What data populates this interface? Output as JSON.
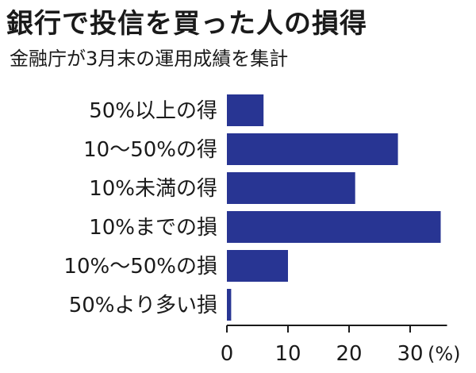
{
  "chart_data": {
    "type": "bar",
    "orientation": "horizontal",
    "title": "銀行で投信を買った人の損得",
    "subtitle": "金融庁が3月末の運用成績を集計",
    "categories": [
      "50%以上の得",
      "10〜50%の得",
      "10%未満の得",
      "10%までの損",
      "10%〜50%の損",
      "50%より多い損"
    ],
    "values": [
      6,
      28,
      21,
      35,
      10,
      0.7
    ],
    "xlim": [
      0,
      35
    ],
    "x_ticks": [
      "0",
      "10",
      "20",
      "30"
    ],
    "x_unit": "(%)",
    "grid": false,
    "bar_color": "#283593"
  }
}
